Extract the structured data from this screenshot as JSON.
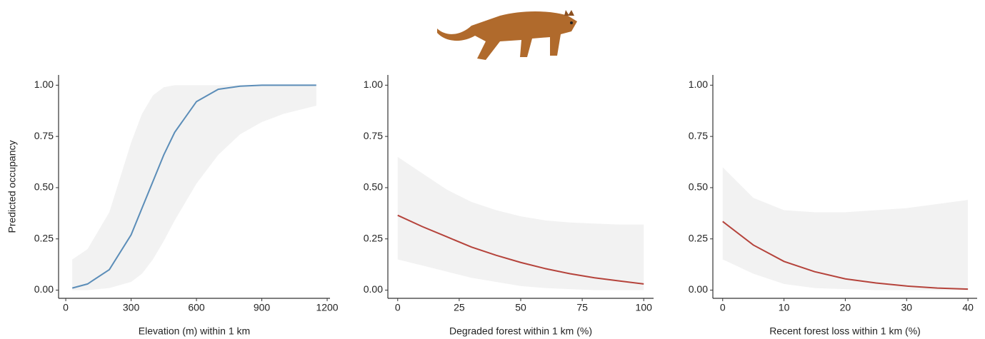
{
  "chart_data": [
    {
      "type": "line",
      "xlabel": "Elevation (m) within 1 km",
      "ylabel": "Predicted occupancy",
      "x": [
        30,
        100,
        200,
        300,
        350,
        400,
        450,
        500,
        600,
        700,
        800,
        900,
        1000,
        1150
      ],
      "values": [
        0.01,
        0.03,
        0.1,
        0.27,
        0.4,
        0.53,
        0.66,
        0.77,
        0.92,
        0.98,
        0.995,
        1.0,
        1.0,
        1.0
      ],
      "upper": [
        0.15,
        0.2,
        0.38,
        0.72,
        0.86,
        0.95,
        0.99,
        1.0,
        1.0,
        1.0,
        1.0,
        1.0,
        1.0,
        1.0
      ],
      "lower": [
        0.0,
        0.0,
        0.01,
        0.04,
        0.08,
        0.15,
        0.24,
        0.34,
        0.52,
        0.66,
        0.76,
        0.82,
        0.86,
        0.9
      ],
      "color": "#5b8db8",
      "band_color": "#f2f2f2",
      "xlim": [
        -33,
        1213
      ],
      "ylim": [
        -0.04,
        1.05
      ],
      "xticks": [
        0,
        300,
        600,
        900,
        1200
      ],
      "yticks": [
        {
          "value": 0,
          "label": "0.00"
        },
        {
          "value": 0.25,
          "label": "0.25"
        },
        {
          "value": 0.5,
          "label": "0.50"
        },
        {
          "value": 0.75,
          "label": "0.75"
        },
        {
          "value": 1,
          "label": "1.00"
        }
      ]
    },
    {
      "type": "line",
      "xlabel": "Degraded forest within 1 km (%)",
      "x": [
        0,
        10,
        20,
        30,
        40,
        50,
        60,
        70,
        80,
        90,
        100
      ],
      "values": [
        0.365,
        0.31,
        0.26,
        0.21,
        0.17,
        0.135,
        0.105,
        0.08,
        0.06,
        0.045,
        0.03
      ],
      "upper": [
        0.65,
        0.57,
        0.49,
        0.43,
        0.39,
        0.36,
        0.34,
        0.33,
        0.325,
        0.32,
        0.32
      ],
      "lower": [
        0.15,
        0.12,
        0.09,
        0.06,
        0.04,
        0.02,
        0.01,
        0.005,
        0,
        0,
        0
      ],
      "color": "#b5433b",
      "band_color": "#f2f2f2",
      "xlim": [
        -4,
        104
      ],
      "ylim": [
        -0.04,
        1.05
      ],
      "xticks": [
        0,
        25,
        50,
        75,
        100
      ],
      "yticks": [
        {
          "value": 0,
          "label": "0.00"
        },
        {
          "value": 0.25,
          "label": "0.25"
        },
        {
          "value": 0.5,
          "label": "0.50"
        },
        {
          "value": 0.75,
          "label": "0.75"
        },
        {
          "value": 1,
          "label": "1.00"
        }
      ]
    },
    {
      "type": "line",
      "xlabel": "Recent forest loss within 1 km (%)",
      "x": [
        0,
        5,
        10,
        15,
        20,
        25,
        30,
        35,
        40
      ],
      "values": [
        0.335,
        0.22,
        0.14,
        0.09,
        0.055,
        0.035,
        0.02,
        0.01,
        0.005
      ],
      "upper": [
        0.6,
        0.45,
        0.39,
        0.38,
        0.38,
        0.39,
        0.4,
        0.42,
        0.44
      ],
      "lower": [
        0.15,
        0.08,
        0.03,
        0.01,
        0.005,
        0,
        0,
        0,
        0
      ],
      "color": "#b5433b",
      "band_color": "#f2f2f2",
      "xlim": [
        -1.6,
        41.5
      ],
      "ylim": [
        -0.04,
        1.05
      ],
      "xticks": [
        0,
        10,
        20,
        30,
        40
      ],
      "yticks": [
        {
          "value": 0,
          "label": "0.00"
        },
        {
          "value": 0.25,
          "label": "0.25"
        },
        {
          "value": 0.5,
          "label": "0.50"
        },
        {
          "value": 0.75,
          "label": "0.75"
        },
        {
          "value": 1,
          "label": "1.00"
        }
      ]
    }
  ]
}
